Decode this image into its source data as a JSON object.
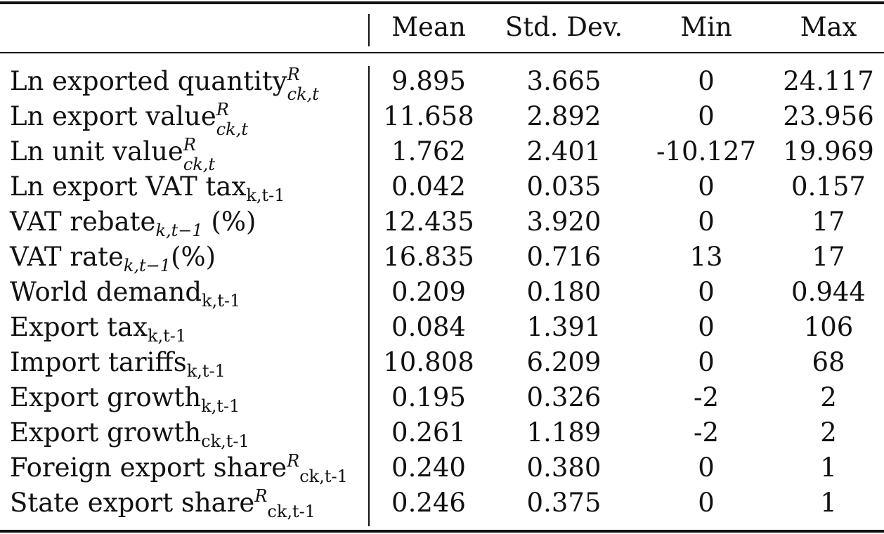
{
  "columns": [
    "Mean",
    "Std. Dev.",
    "Min",
    "Max"
  ],
  "rows": [
    {
      "label": "Ln exported quantity",
      "sup": "R",
      "sub": "ck,t",
      "sub_italic": true,
      "mean": "9.895",
      "sd": "3.665",
      "min": "0",
      "max": "24.117"
    },
    {
      "label": "Ln export value",
      "sup": "R",
      "sub": "ck,t",
      "sub_italic": true,
      "mean": "11.658",
      "sd": "2.892",
      "min": "0",
      "max": "23.956"
    },
    {
      "label": "Ln unit value",
      "sup": "R",
      "sub": "ck,t",
      "sub_italic": true,
      "mean": "1.762",
      "sd": "2.401",
      "min": "-10.127",
      "max": "19.969"
    },
    {
      "label": "Ln export VAT tax",
      "sub": "k,t-1",
      "sub_italic": false,
      "mean": "0.042",
      "sd": "0.035",
      "min": "0",
      "max": "0.157"
    },
    {
      "label": "VAT rebate",
      "sub": "k,t−1",
      "sub_italic": true,
      "after": " (%)",
      "mean": "12.435",
      "sd": "3.920",
      "min": "0",
      "max": "17"
    },
    {
      "label": "VAT rate",
      "sub": "k,t−1",
      "sub_italic": true,
      "after": "(%)",
      "mean": "16.835",
      "sd": "0.716",
      "min": "13",
      "max": "17"
    },
    {
      "label": "World demand",
      "sub": "k,t-1",
      "sub_italic": false,
      "mean": "0.209",
      "sd": "0.180",
      "min": "0",
      "max": "0.944"
    },
    {
      "label": "Export tax",
      "sub": "k,t-1",
      "sub_italic": false,
      "mean": "0.084",
      "sd": "1.391",
      "min": "0",
      "max": "106"
    },
    {
      "label": "Import tariffs",
      "sub": "k,t-1",
      "sub_italic": false,
      "mean": "10.808",
      "sd": "6.209",
      "min": "0",
      "max": "68"
    },
    {
      "label": "Export growth",
      "sub": "k,t-1",
      "sub_italic": false,
      "mean": "0.195",
      "sd": "0.326",
      "min": "-2",
      "max": "2"
    },
    {
      "label": "Export growth",
      "sub": "ck,t-1",
      "sub_italic": false,
      "mean": "0.261",
      "sd": "1.189",
      "min": "-2",
      "max": "2"
    },
    {
      "label": "Foreign export share",
      "sup": "R",
      "sub": "ck,t-1",
      "sub_italic": false,
      "mean": "0.240",
      "sd": "0.380",
      "min": "0",
      "max": "1"
    },
    {
      "label": "State export share",
      "sup": "R",
      "sub": "ck,t-1",
      "sub_italic": false,
      "mean": "0.246",
      "sd": "0.375",
      "min": "0",
      "max": "1"
    }
  ]
}
